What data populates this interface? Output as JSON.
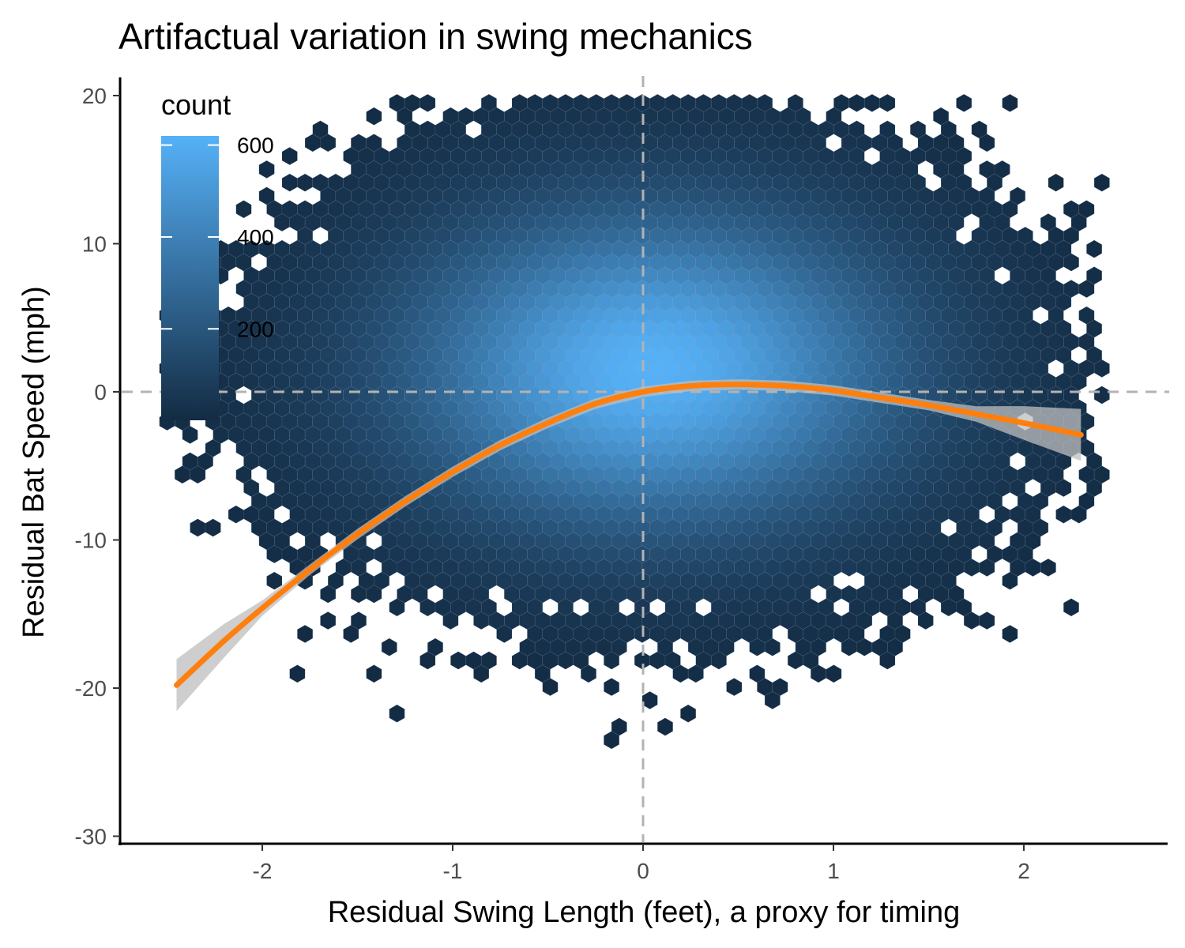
{
  "chart_data": {
    "type": "hexbin",
    "title": "Artifactual variation in swing mechanics",
    "xlabel": "Residual Swing Length (feet), a proxy for timing",
    "ylabel": "Residual Bat Speed (mph)",
    "xlim": [
      -2.7,
      2.7
    ],
    "ylim": [
      -30.3,
      21.2
    ],
    "x_ticks": [
      -2,
      -1,
      0,
      1,
      2
    ],
    "x_tick_labels": [
      "-2",
      "-1",
      "0",
      "1",
      "2"
    ],
    "y_ticks": [
      -30,
      -20,
      -10,
      0,
      10,
      20
    ],
    "y_tick_labels": [
      "-30",
      "-20",
      "-10",
      "0",
      "10",
      "20"
    ],
    "grid": false,
    "reference_lines": [
      {
        "orientation": "vertical",
        "value": 0,
        "style": "dashed",
        "color": "#b3b3b3"
      },
      {
        "orientation": "horizontal",
        "value": 0,
        "style": "dashed",
        "color": "#b3b3b3"
      }
    ],
    "density": {
      "peak_x": 0.05,
      "peak_y": 1.5,
      "peak_count": 620,
      "x_std": 0.9,
      "y_std": 7.5,
      "color_low": "#132b43",
      "color_high": "#56b1f7"
    },
    "smooth_line": {
      "color": "#ff7f0e",
      "band_color": "#bdbdbd",
      "x": [
        -2.45,
        -2.2,
        -2.0,
        -1.75,
        -1.5,
        -1.25,
        -1.0,
        -0.75,
        -0.5,
        -0.25,
        0.0,
        0.25,
        0.5,
        0.75,
        1.0,
        1.25,
        1.5,
        1.75,
        2.0,
        2.3
      ],
      "y": [
        -19.8,
        -16.8,
        -14.6,
        -12.0,
        -9.6,
        -7.4,
        -5.4,
        -3.6,
        -2.1,
        -0.8,
        0.0,
        0.4,
        0.5,
        0.4,
        0.1,
        -0.4,
        -0.9,
        -1.5,
        -2.1,
        -2.9
      ]
    },
    "legend": {
      "title": "count",
      "placement": "top-left",
      "ticks": [
        200,
        400,
        600
      ],
      "tick_labels": [
        "200",
        "400",
        "600"
      ],
      "range": [
        1,
        620
      ]
    }
  }
}
